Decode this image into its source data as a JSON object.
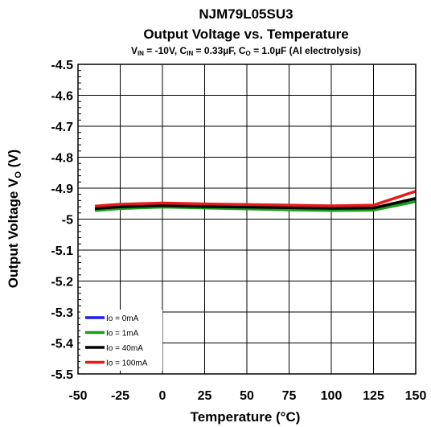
{
  "chart_data": {
    "type": "line",
    "title": "NJM79L05SU3",
    "subtitle": "Output Voltage vs. Temperature",
    "conditions": {
      "vin_label": "V",
      "vin_sub": "IN",
      "vin_value": " = -10V, ",
      "cin_label": "C",
      "cin_sub": "IN",
      "cin_value": " = 0.33µF, ",
      "co_label": "C",
      "co_sub": "O",
      "co_value": " = 1.0µF (Al electrolysis)"
    },
    "xlabel": "Temperature (°C)",
    "ylabel_main": "Output Voltage V",
    "ylabel_sub": "O",
    "ylabel_unit": " (V)",
    "xlim": [
      -50,
      150
    ],
    "ylim": [
      -5.5,
      -4.5
    ],
    "xticks": [
      "-50",
      "-25",
      "0",
      "25",
      "50",
      "75",
      "100",
      "125",
      "150"
    ],
    "yticks": [
      "-4.5",
      "-4.6",
      "-4.7",
      "-4.8",
      "-4.9",
      "-5",
      "-5.1",
      "-5.2",
      "-5.3",
      "-5.4",
      "-5.5"
    ],
    "grid": true,
    "legend_position": "bottom-left",
    "x": [
      -40,
      -25,
      0,
      25,
      50,
      75,
      100,
      125,
      150
    ],
    "series": [
      {
        "name": "Io = 0mA",
        "color": "#1f1fe6",
        "values": [
          -4.968,
          -4.963,
          -4.958,
          -4.961,
          -4.964,
          -4.967,
          -4.969,
          -4.968,
          -4.94
        ]
      },
      {
        "name": "Io = 1mA",
        "color": "#1a9e1a",
        "values": [
          -4.972,
          -4.966,
          -4.961,
          -4.964,
          -4.967,
          -4.97,
          -4.972,
          -4.971,
          -4.943
        ]
      },
      {
        "name": "Io = 40mA",
        "color": "#000000",
        "values": [
          -4.966,
          -4.96,
          -4.956,
          -4.959,
          -4.961,
          -4.963,
          -4.965,
          -4.964,
          -4.933
        ]
      },
      {
        "name": "Io = 100mA",
        "color": "#e61a1a",
        "values": [
          -4.958,
          -4.952,
          -4.948,
          -4.951,
          -4.953,
          -4.955,
          -4.957,
          -4.955,
          -4.91
        ]
      }
    ]
  }
}
